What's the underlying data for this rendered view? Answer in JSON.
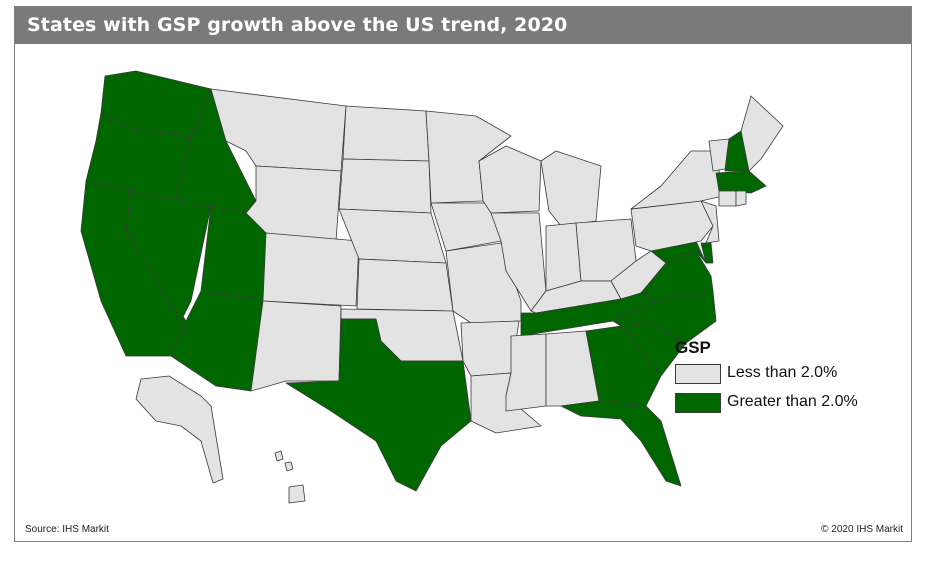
{
  "title": "States with GSP growth above the US trend, 2020",
  "legend": {
    "title": "GSP",
    "items": [
      {
        "label": "Less than 2.0%",
        "color": "#e3e3e3"
      },
      {
        "label": "Greater than 2.0%",
        "color": "#006600"
      }
    ]
  },
  "footer": {
    "source": "Source: IHS Markit",
    "copyright": "© 2020 IHS Markit"
  },
  "states": {
    "greater_than_2": [
      "WA",
      "OR",
      "CA",
      "NV",
      "ID",
      "UT",
      "AZ",
      "TX",
      "TN",
      "VA",
      "NC",
      "SC",
      "GA",
      "FL",
      "MD",
      "DE",
      "NH",
      "MA"
    ],
    "less_than_2": [
      "MT",
      "WY",
      "CO",
      "NM",
      "ND",
      "SD",
      "NE",
      "KS",
      "OK",
      "MN",
      "IA",
      "MO",
      "AR",
      "LA",
      "WI",
      "IL",
      "MI",
      "IN",
      "OH",
      "KY",
      "WV",
      "PA",
      "NY",
      "VT",
      "ME",
      "CT",
      "RI",
      "NJ",
      "MS",
      "AL",
      "AK",
      "HI"
    ]
  }
}
